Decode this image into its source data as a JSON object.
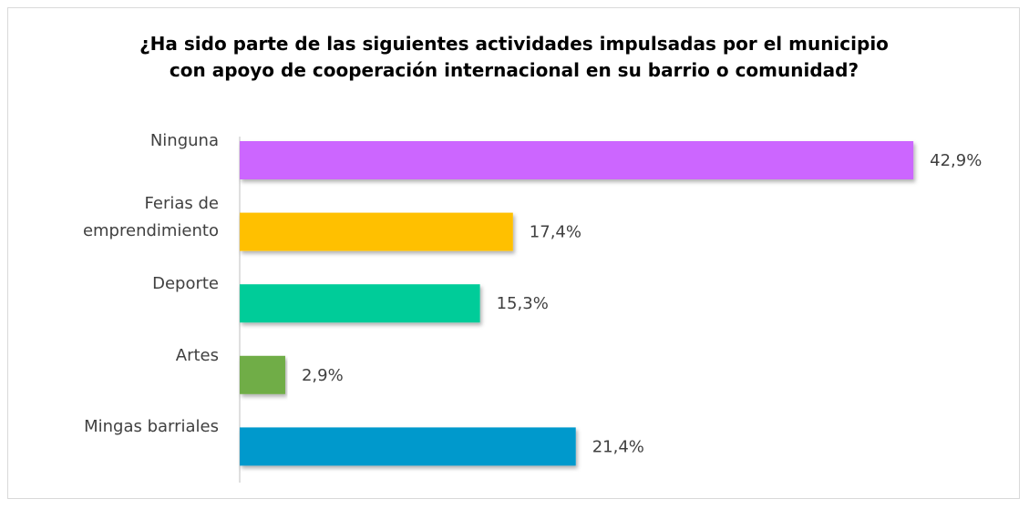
{
  "chart_data": {
    "type": "bar",
    "orientation": "horizontal",
    "title": "¿Ha sido parte de las siguientes actividades impulsadas por el municipio con apoyo de cooperación internacional en su barrio o comunidad?",
    "categories": [
      "Ninguna",
      "Ferias de\nemprendimiento",
      "Deporte",
      "Artes",
      "Mingas barriales"
    ],
    "values": [
      42.9,
      17.4,
      15.3,
      2.9,
      21.4
    ],
    "value_labels": [
      "42,9%",
      "17,4%",
      "15,3%",
      "2,9%",
      "21,4%"
    ],
    "colors": [
      "#cc66ff",
      "#ffc000",
      "#00cc99",
      "#70ad47",
      "#0099cc"
    ]
  }
}
